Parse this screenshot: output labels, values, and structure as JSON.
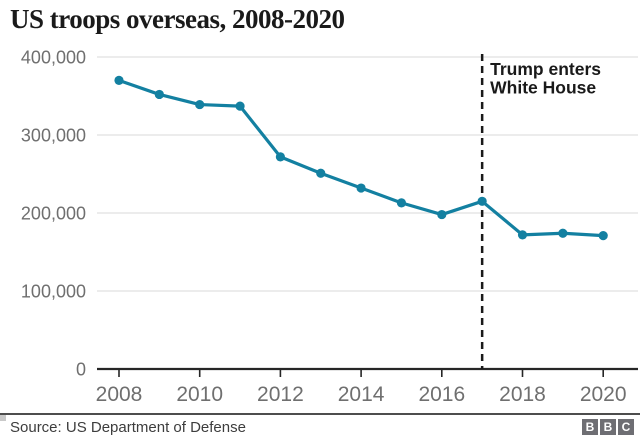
{
  "title": "US troops overseas, 2008-2020",
  "source": "Source: US Department of Defense",
  "logo": {
    "letters": [
      "B",
      "B",
      "C"
    ]
  },
  "colors": {
    "line": "#1380a1",
    "marker": "#1380a1",
    "grid": "#e1e1e1",
    "axis": "#262626",
    "tick_label": "#6f6f6f",
    "annotation": "#1a1a1a",
    "vline": "#1a1a1a",
    "title": "#1a1a1a",
    "source": "#3d3d3d",
    "logo_bg": "#6e6e73"
  },
  "chart_data": {
    "type": "line",
    "title": "US troops overseas, 2008-2020",
    "xlabel": "",
    "ylabel": "",
    "x": [
      2008,
      2009,
      2010,
      2011,
      2012,
      2013,
      2014,
      2015,
      2016,
      2017,
      2018,
      2019,
      2020
    ],
    "values": [
      370000,
      352000,
      339000,
      337000,
      272000,
      251000,
      232000,
      213000,
      198000,
      215000,
      172000,
      174000,
      171000
    ],
    "series_name": "US troops overseas",
    "ylim": [
      0,
      400000
    ],
    "xlim": [
      2008,
      2020
    ],
    "yticks": [
      0,
      100000,
      200000,
      300000,
      400000
    ],
    "ytick_labels": [
      "0",
      "100,000",
      "200,000",
      "300,000",
      "400,000"
    ],
    "xticks": [
      2008,
      2010,
      2012,
      2014,
      2016,
      2018,
      2020
    ],
    "xtick_labels": [
      "2008",
      "2010",
      "2012",
      "2014",
      "2016",
      "2018",
      "2020"
    ],
    "grid": true,
    "legend": false,
    "marker": "circle",
    "vline": {
      "x": 2017,
      "style": "dashed",
      "label_lines": [
        "Trump enters",
        "White House"
      ]
    }
  }
}
